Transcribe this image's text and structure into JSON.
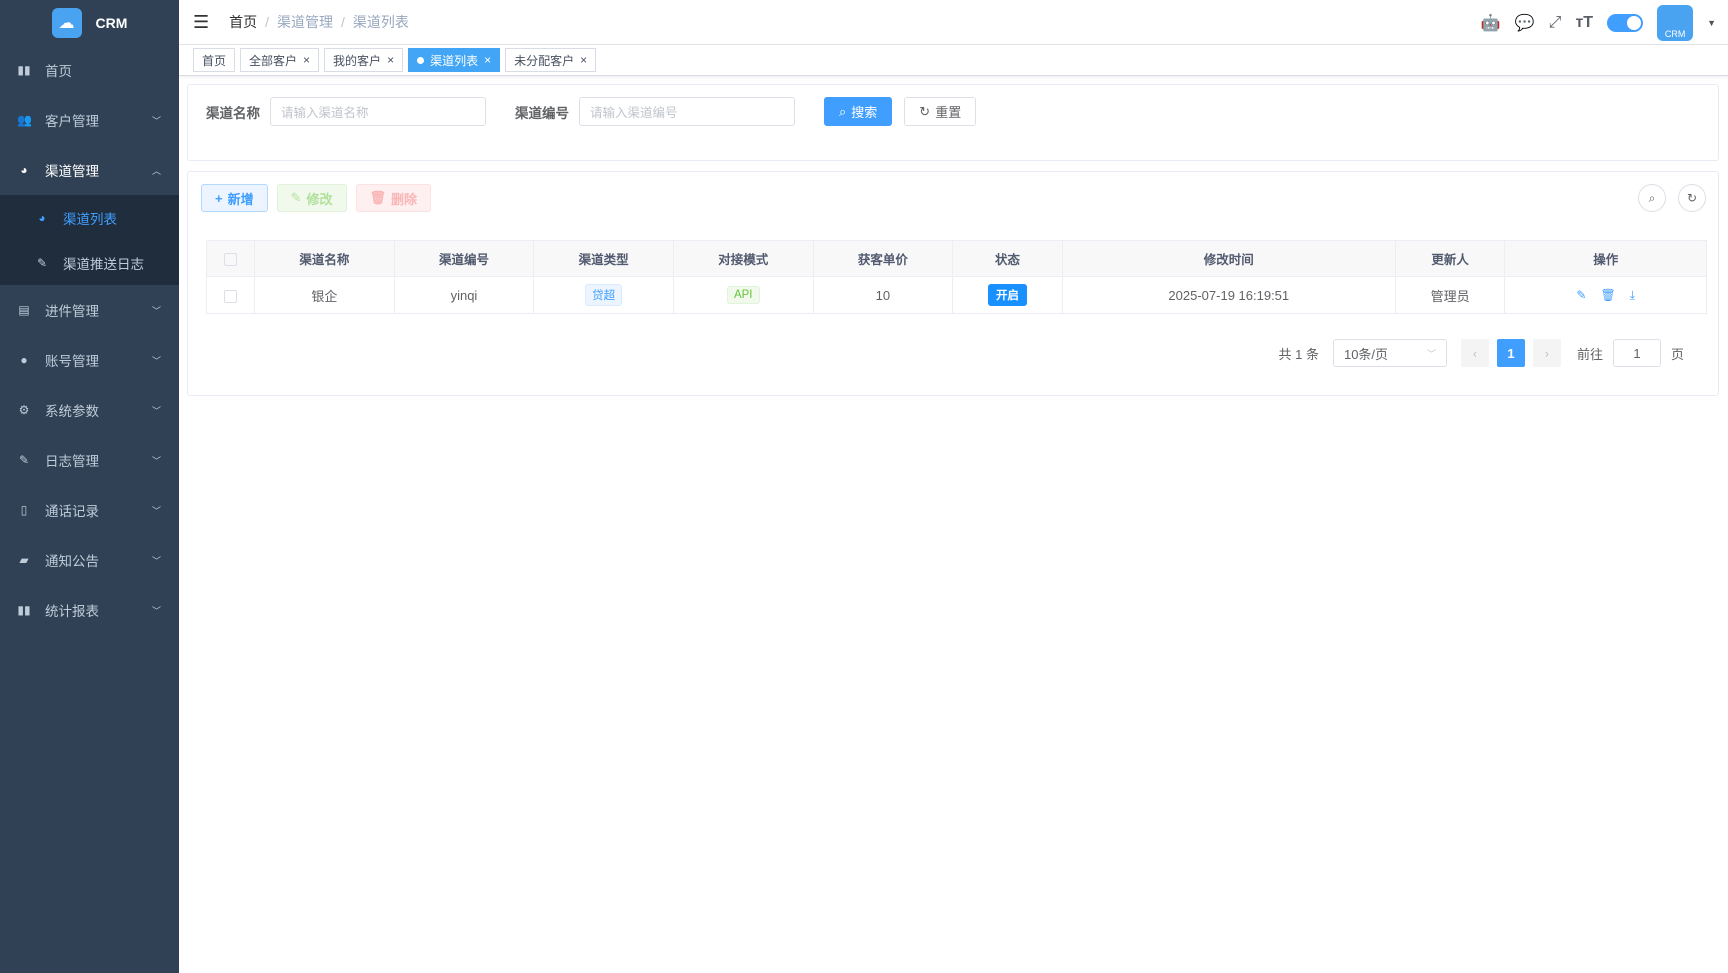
{
  "app": {
    "name": "CRM",
    "logo_text": "CRM"
  },
  "sidebar": {
    "items": [
      {
        "label": "首页",
        "icon": "bar-chart-icon"
      },
      {
        "label": "客户管理",
        "icon": "users-icon"
      },
      {
        "label": "渠道管理",
        "icon": "globe-icon",
        "expanded": true
      },
      {
        "label": "渠道列表",
        "icon": "globe-icon",
        "active": true
      },
      {
        "label": "渠道推送日志",
        "icon": "edit-icon"
      },
      {
        "label": "进件管理",
        "icon": "book-icon"
      },
      {
        "label": "账号管理",
        "icon": "user-icon"
      },
      {
        "label": "系统参数",
        "icon": "gear-icon"
      },
      {
        "label": "日志管理",
        "icon": "edit-icon"
      },
      {
        "label": "通话记录",
        "icon": "phone-icon"
      },
      {
        "label": "通知公告",
        "icon": "message-icon"
      },
      {
        "label": "统计报表",
        "icon": "bar-chart-icon"
      }
    ]
  },
  "header": {
    "breadcrumb": [
      "首页",
      "渠道管理",
      "渠道列表"
    ],
    "avatar_text": "CRM"
  },
  "tabs": [
    {
      "label": "首页"
    },
    {
      "label": "全部客户"
    },
    {
      "label": "我的客户"
    },
    {
      "label": "渠道列表",
      "active": true
    },
    {
      "label": "未分配客户"
    }
  ],
  "search": {
    "name_label": "渠道名称",
    "name_placeholder": "请输入渠道名称",
    "code_label": "渠道编号",
    "code_placeholder": "请输入渠道编号",
    "search_btn": "搜索",
    "reset_btn": "重置"
  },
  "toolbar": {
    "add": "新增",
    "edit": "修改",
    "delete": "删除"
  },
  "table": {
    "headers": [
      "渠道名称",
      "渠道编号",
      "渠道类型",
      "对接模式",
      "获客单价",
      "状态",
      "修改时间",
      "更新人",
      "操作"
    ],
    "rows": [
      {
        "name": "银企",
        "code": "yinqi",
        "type": "贷超",
        "mode": "API",
        "price": "10",
        "status": "开启",
        "time": "2025-07-19 16:19:51",
        "updater": "管理员"
      }
    ]
  },
  "pagination": {
    "total": "共 1 条",
    "page_size": "10条/页",
    "current": "1",
    "goto_label": "前往",
    "goto_value": "1",
    "page_unit": "页"
  },
  "colors": {
    "sidebar": "#304156",
    "primary": "#409eff"
  }
}
